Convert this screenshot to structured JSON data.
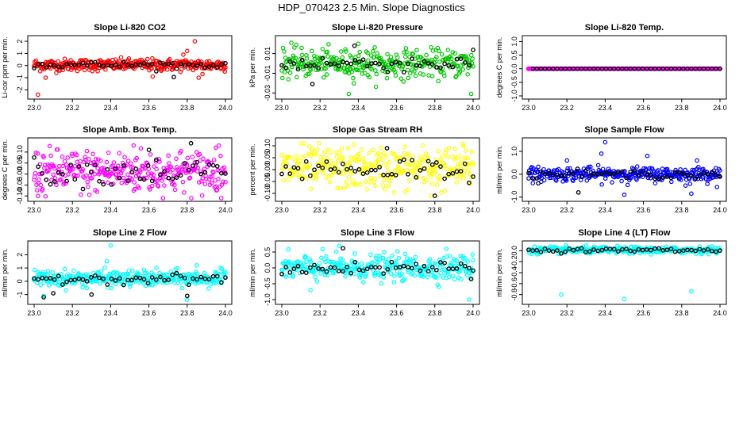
{
  "main_title": "HDP_070423  2.5 Min. Slope Diagnostics",
  "chart_data": [
    {
      "type": "scatter",
      "title": "Slope Li-820 CO2",
      "ylabel": "Li-cor ppm per min.",
      "xlim": [
        23.0,
        24.0
      ],
      "ylim": [
        -2.5,
        2.2
      ],
      "xticks": [
        "23.0",
        "23.2",
        "23.4",
        "23.6",
        "23.8",
        "24.0"
      ],
      "yticks": [
        {
          "v": -2,
          "label": "-2"
        },
        {
          "v": -1,
          "label": "-1"
        },
        {
          "v": 0,
          "label": "0"
        },
        {
          "v": 1,
          "label": "1"
        },
        {
          "v": 2,
          "label": "2"
        }
      ],
      "color": "#ff0000",
      "center": 0.05,
      "spread": 0.25,
      "outliers": [
        [
          23.02,
          -2.4
        ],
        [
          23.06,
          -1.0
        ],
        [
          23.62,
          -0.9
        ],
        [
          23.8,
          1.2
        ],
        [
          23.84,
          2.0
        ],
        [
          23.86,
          -1.0
        ],
        [
          23.78,
          0.9
        ],
        [
          23.88,
          -0.7
        ]
      ],
      "black_outliers": [
        [
          23.73,
          -0.95
        ]
      ]
    },
    {
      "type": "scatter",
      "title": "Slope Li-820 Pressure",
      "ylabel": "kPa per min.",
      "xlim": [
        23.0,
        24.0
      ],
      "ylim": [
        -0.033,
        0.025
      ],
      "xticks": [
        "23.0",
        "23.2",
        "23.4",
        "23.6",
        "23.8",
        "24.0"
      ],
      "yticks": [
        {
          "v": -0.03,
          "label": "-0.03"
        },
        {
          "v": -0.01,
          "label": "-0.01"
        },
        {
          "v": 0.01,
          "label": "0.01"
        }
      ],
      "color": "#00c800",
      "center": 0.0,
      "spread": 0.007,
      "outliers": [
        [
          23.35,
          -0.031
        ],
        [
          23.99,
          -0.031
        ],
        [
          23.05,
          0.021
        ],
        [
          23.4,
          0.02
        ],
        [
          23.55,
          -0.015
        ],
        [
          23.45,
          -0.012
        ]
      ],
      "black_outliers": [
        [
          23.16,
          -0.021
        ],
        [
          23.38,
          0.018
        ]
      ]
    },
    {
      "type": "scatter",
      "title": "Slope Li-820 Temp.",
      "ylabel": "degrees C per min.",
      "xlim": [
        23.0,
        24.0
      ],
      "ylim": [
        -1.0,
        1.1
      ],
      "xticks": [
        "23.0",
        "23.2",
        "23.4",
        "23.6",
        "23.8",
        "24.0"
      ],
      "yticks": [
        {
          "v": -1,
          "label": "-1.0"
        },
        {
          "v": -0.5,
          "label": "-0.5"
        },
        {
          "v": 0,
          "label": "0.0"
        },
        {
          "v": 0.5,
          "label": "0.5"
        },
        {
          "v": 1,
          "label": "1.0"
        }
      ],
      "color": "#ff00ff",
      "center": 0.0,
      "spread": 0.0,
      "outliers": [],
      "black_outliers": []
    },
    {
      "type": "scatter",
      "title": "Slope Amb. Box Temp.",
      "ylabel": "degrees C per min.",
      "xlim": [
        23.0,
        24.0
      ],
      "ylim": [
        -0.11,
        0.15
      ],
      "xticks": [
        "23.0",
        "23.2",
        "23.4",
        "23.6",
        "23.8",
        "24.0"
      ],
      "yticks": [
        {
          "v": -0.1,
          "label": "-0.10"
        },
        {
          "v": -0.05,
          "label": "-0.05"
        },
        {
          "v": 0,
          "label": "0.00"
        },
        {
          "v": 0.05,
          "label": "0.05"
        },
        {
          "v": 0.1,
          "label": "0.10"
        }
      ],
      "color": "#ff00ff",
      "center": 0.01,
      "spread": 0.05,
      "outliers": [
        [
          23.52,
          0.13
        ],
        [
          23.02,
          -0.1
        ],
        [
          23.95,
          0.12
        ]
      ],
      "black_outliers": [
        [
          23.82,
          0.14
        ],
        [
          23.6,
          0.11
        ]
      ]
    },
    {
      "type": "scatter",
      "title": "Slope Gas Stream RH",
      "ylabel": "percent per min.",
      "xlim": [
        23.0,
        24.0
      ],
      "ylim": [
        -0.12,
        0.12
      ],
      "xticks": [
        "23.0",
        "23.2",
        "23.4",
        "23.6",
        "23.8",
        "24.0"
      ],
      "yticks": [
        {
          "v": -0.1,
          "label": "-0.10"
        },
        {
          "v": -0.05,
          "label": "-0.05"
        },
        {
          "v": 0,
          "label": "0.00"
        },
        {
          "v": 0.05,
          "label": "0.05"
        },
        {
          "v": 0.1,
          "label": "0.10"
        }
      ],
      "color": "#ffff00",
      "center": 0.005,
      "spread": 0.045,
      "outliers": [
        [
          23.78,
          -0.11
        ],
        [
          23.95,
          0.1
        ],
        [
          23.1,
          0.11
        ]
      ],
      "black_outliers": [
        [
          23.8,
          -0.11
        ],
        [
          23.55,
          0.09
        ]
      ]
    },
    {
      "type": "scatter",
      "title": "Slope Sample Flow",
      "ylabel": "ml/min per min.",
      "xlim": [
        23.0,
        24.0
      ],
      "ylim": [
        -1.05,
        1.45
      ],
      "xticks": [
        "23.0",
        "23.2",
        "23.4",
        "23.6",
        "23.8",
        "24.0"
      ],
      "yticks": [
        {
          "v": -1,
          "label": "-1.0"
        },
        {
          "v": 0,
          "label": "0.0"
        },
        {
          "v": 1,
          "label": "1.0"
        }
      ],
      "color": "#0000ff",
      "center": 0.0,
      "spread": 0.15,
      "outliers": [
        [
          23.4,
          1.4
        ],
        [
          23.38,
          0.9
        ],
        [
          23.5,
          -0.9
        ],
        [
          23.85,
          -0.85
        ],
        [
          23.82,
          -0.5
        ],
        [
          23.2,
          0.6
        ],
        [
          23.62,
          0.8
        ],
        [
          23.88,
          0.6
        ]
      ],
      "black_outliers": [
        [
          23.26,
          -0.8
        ],
        [
          23.05,
          -0.4
        ]
      ]
    },
    {
      "type": "scatter",
      "title": "Slope Line 2 Flow",
      "ylabel": "ml/min per min.",
      "xlim": [
        23.0,
        24.0
      ],
      "ylim": [
        -1.5,
        2.8
      ],
      "xticks": [
        "23.0",
        "23.2",
        "23.4",
        "23.6",
        "23.8",
        "24.0"
      ],
      "yticks": [
        {
          "v": -1,
          "label": "-1"
        },
        {
          "v": 0,
          "label": "0"
        },
        {
          "v": 1,
          "label": "1"
        },
        {
          "v": 2,
          "label": "2"
        }
      ],
      "color": "#00ffff",
      "center": 0.2,
      "spread": 0.3,
      "outliers": [
        [
          23.4,
          2.7
        ],
        [
          23.38,
          1.5
        ],
        [
          23.8,
          -1.4
        ],
        [
          23.85,
          1.2
        ],
        [
          23.05,
          -1.1
        ]
      ],
      "black_outliers": [
        [
          23.05,
          -1.2
        ],
        [
          23.1,
          -0.9
        ],
        [
          23.3,
          -1.0
        ],
        [
          23.8,
          -1.1
        ]
      ]
    },
    {
      "type": "scatter",
      "title": "Slope Line 3 Flow",
      "ylabel": "ml/min per min.",
      "xlim": [
        23.0,
        24.0
      ],
      "ylim": [
        -1.05,
        0.75
      ],
      "xticks": [
        "23.0",
        "23.2",
        "23.4",
        "23.6",
        "23.8",
        "24.0"
      ],
      "yticks": [
        {
          "v": -1,
          "label": "-1.0"
        },
        {
          "v": -0.5,
          "label": "-0.5"
        },
        {
          "v": 0,
          "label": "0.0"
        },
        {
          "v": 0.5,
          "label": "0.5"
        }
      ],
      "color": "#00ffff",
      "center": 0.0,
      "spread": 0.2,
      "outliers": [
        [
          23.98,
          -1.0
        ],
        [
          23.86,
          0.6
        ],
        [
          23.3,
          0.7
        ],
        [
          23.15,
          -0.7
        ]
      ],
      "black_outliers": [
        [
          23.32,
          0.62
        ],
        [
          23.99,
          -0.35
        ]
      ]
    },
    {
      "type": "scatter",
      "title": "Slope Line 4 (LT) Flow",
      "ylabel": "ml/min per min.",
      "xlim": [
        23.0,
        24.0
      ],
      "ylim": [
        -0.92,
        0.12
      ],
      "xticks": [
        "23.0",
        "23.2",
        "23.4",
        "23.6",
        "23.8",
        "24.0"
      ],
      "yticks": [
        {
          "v": -0.8,
          "label": "-0.8"
        },
        {
          "v": -0.6,
          "label": "-0.6"
        },
        {
          "v": -0.4,
          "label": "-0.4"
        },
        {
          "v": -0.2,
          "label": "-0.2"
        },
        {
          "v": 0,
          "label": "0.0"
        }
      ],
      "color": "#00ffff",
      "center": 0.01,
      "spread": 0.03,
      "outliers": [
        [
          23.17,
          -0.8
        ],
        [
          23.5,
          -0.88
        ],
        [
          23.85,
          -0.74
        ]
      ],
      "black_outliers": []
    }
  ]
}
